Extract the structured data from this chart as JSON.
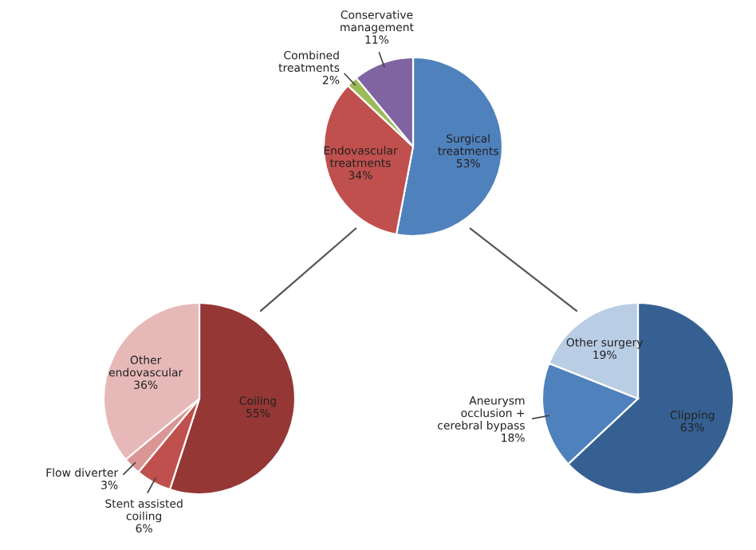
{
  "chart_data": [
    {
      "type": "pie",
      "categories": [
        "Surgical\ntreatments",
        "Endovascular\ntreatments",
        "Combined\ntreatments",
        "Conservative\nmanagement"
      ],
      "values": [
        53,
        34,
        2,
        11
      ],
      "value_labels": [
        "53%",
        "34%",
        "2%",
        "11%"
      ],
      "colors": [
        "#4f81bd",
        "#c0504d",
        "#9bbb59",
        "#8064a2"
      ]
    },
    {
      "type": "pie",
      "categories": [
        "Coiling",
        "Stent assisted\ncoiling",
        "Flow diverter",
        "Other\nendovascular"
      ],
      "values": [
        55,
        6,
        3,
        36
      ],
      "value_labels": [
        "55%",
        "6%",
        "3%",
        "36%"
      ],
      "colors": [
        "#953735",
        "#c0504d",
        "#d99694",
        "#e6b9b8"
      ]
    },
    {
      "type": "pie",
      "categories": [
        "Clipping",
        "Aneurysm\nocclusion +\ncerebral bypass",
        "Other surgery"
      ],
      "values": [
        63,
        18,
        19
      ],
      "value_labels": [
        "63%",
        "18%",
        "19%"
      ],
      "colors": [
        "#366092",
        "#4f81bd",
        "#b9cde5"
      ]
    }
  ]
}
